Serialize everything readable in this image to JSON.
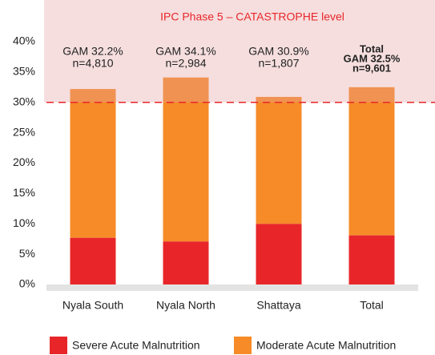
{
  "chart_data": {
    "type": "stacked_bar",
    "band_label": "IPC Phase 5 – CATASTROPHE level",
    "threshold": 30,
    "categories": [
      "Nyala South",
      "Nyala North",
      "Shattaya",
      "Total"
    ],
    "series": [
      {
        "name": "Severe Acute Malnutrition",
        "color": "#e8262a",
        "values": [
          7.7,
          7.1,
          10.0,
          8.1
        ]
      },
      {
        "name": "Moderate Acute Malnutrition",
        "color": "#f68b28",
        "values": [
          24.5,
          27.0,
          20.9,
          24.4
        ]
      }
    ],
    "annotations": [
      [
        "GAM 32.2%",
        "n=4,810"
      ],
      [
        "GAM 34.1%",
        "n=2,984"
      ],
      [
        "GAM 30.9%",
        "n=1,807"
      ],
      [
        "Total",
        "GAM 32.5%",
        "n=9,601"
      ]
    ],
    "ylim": [
      0,
      40
    ],
    "yticks": [
      {
        "value": 0,
        "label": "0%"
      },
      {
        "value": 5,
        "label": "5%"
      },
      {
        "value": 10,
        "label": "10%"
      },
      {
        "value": 15,
        "label": "15%"
      },
      {
        "value": 20,
        "label": "20%"
      },
      {
        "value": 25,
        "label": "25%"
      },
      {
        "value": 30,
        "label": "30%"
      },
      {
        "value": 35,
        "label": "35%"
      },
      {
        "value": 40,
        "label": "40%"
      }
    ]
  }
}
